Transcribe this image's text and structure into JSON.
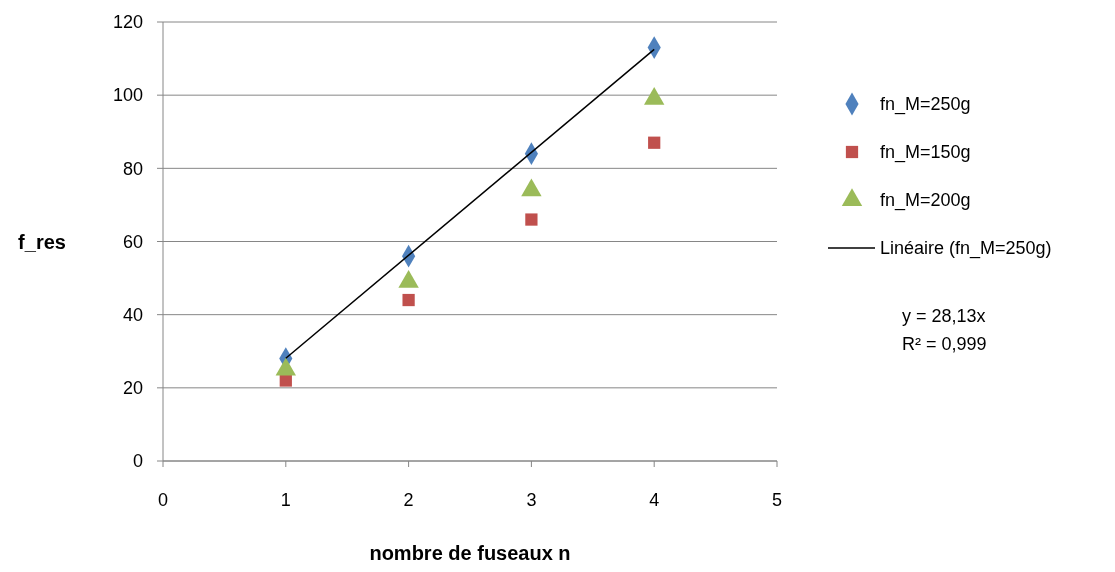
{
  "chart_data": {
    "type": "scatter",
    "xlabel": "nombre de fuseaux n",
    "ylabel": "f_res",
    "xlim": [
      0,
      5
    ],
    "xticks": [
      0,
      1,
      2,
      3,
      4,
      5
    ],
    "ylim": [
      0,
      120
    ],
    "yticks": [
      0,
      20,
      40,
      60,
      80,
      100,
      120
    ],
    "grid": "y",
    "legend": "right",
    "series": [
      {
        "name": "fn_M=250g",
        "color": "#4f81bd",
        "marker": "diamond",
        "x": [
          1,
          2,
          3,
          4
        ],
        "values": [
          28,
          56,
          84,
          113
        ]
      },
      {
        "name": "fn_M=150g",
        "color": "#c0504d",
        "marker": "square",
        "x": [
          1,
          2,
          3,
          4
        ],
        "values": [
          22,
          44,
          66,
          87
        ]
      },
      {
        "name": "fn_M=200g",
        "color": "#9bbb59",
        "marker": "triangle",
        "x": [
          1,
          2,
          3,
          4
        ],
        "values": [
          25,
          49,
          74,
          99
        ]
      },
      {
        "name": "Linéaire (fn_M=250g)",
        "type": "line",
        "color": "#000000",
        "marker": "none",
        "line_style": "solid",
        "x": [
          1,
          4
        ],
        "values": [
          28.1,
          112.5
        ]
      }
    ],
    "annotations": [
      "y = 28,13x",
      "R² = 0,999"
    ]
  }
}
